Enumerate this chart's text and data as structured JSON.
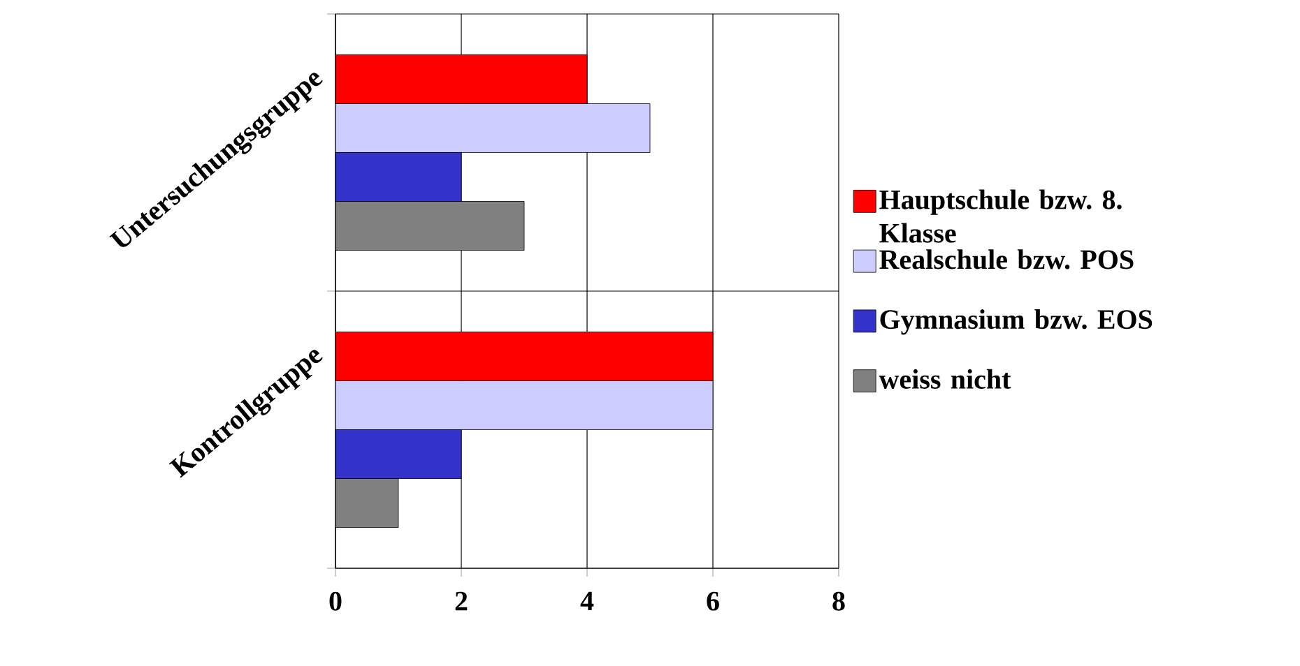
{
  "chart_data": {
    "type": "bar",
    "orientation": "horizontal",
    "categories": [
      "Untersuchungsgruppe",
      "Kontrollgruppe"
    ],
    "series": [
      {
        "name": "Hauptschule bzw. 8. Klasse",
        "color": "#ff0000",
        "values": [
          4,
          6
        ]
      },
      {
        "name": "Realschule bzw. POS",
        "color": "#ccccff",
        "values": [
          5,
          6
        ]
      },
      {
        "name": "Gymnasium bzw. EOS",
        "color": "#3333cc",
        "values": [
          2,
          2
        ]
      },
      {
        "name": "weiss nicht",
        "color": "#808080",
        "values": [
          3,
          1
        ]
      }
    ],
    "xlim": [
      0,
      8
    ],
    "xticks": [
      0,
      2,
      4,
      6,
      8
    ],
    "grid": "x",
    "legend": "right"
  }
}
